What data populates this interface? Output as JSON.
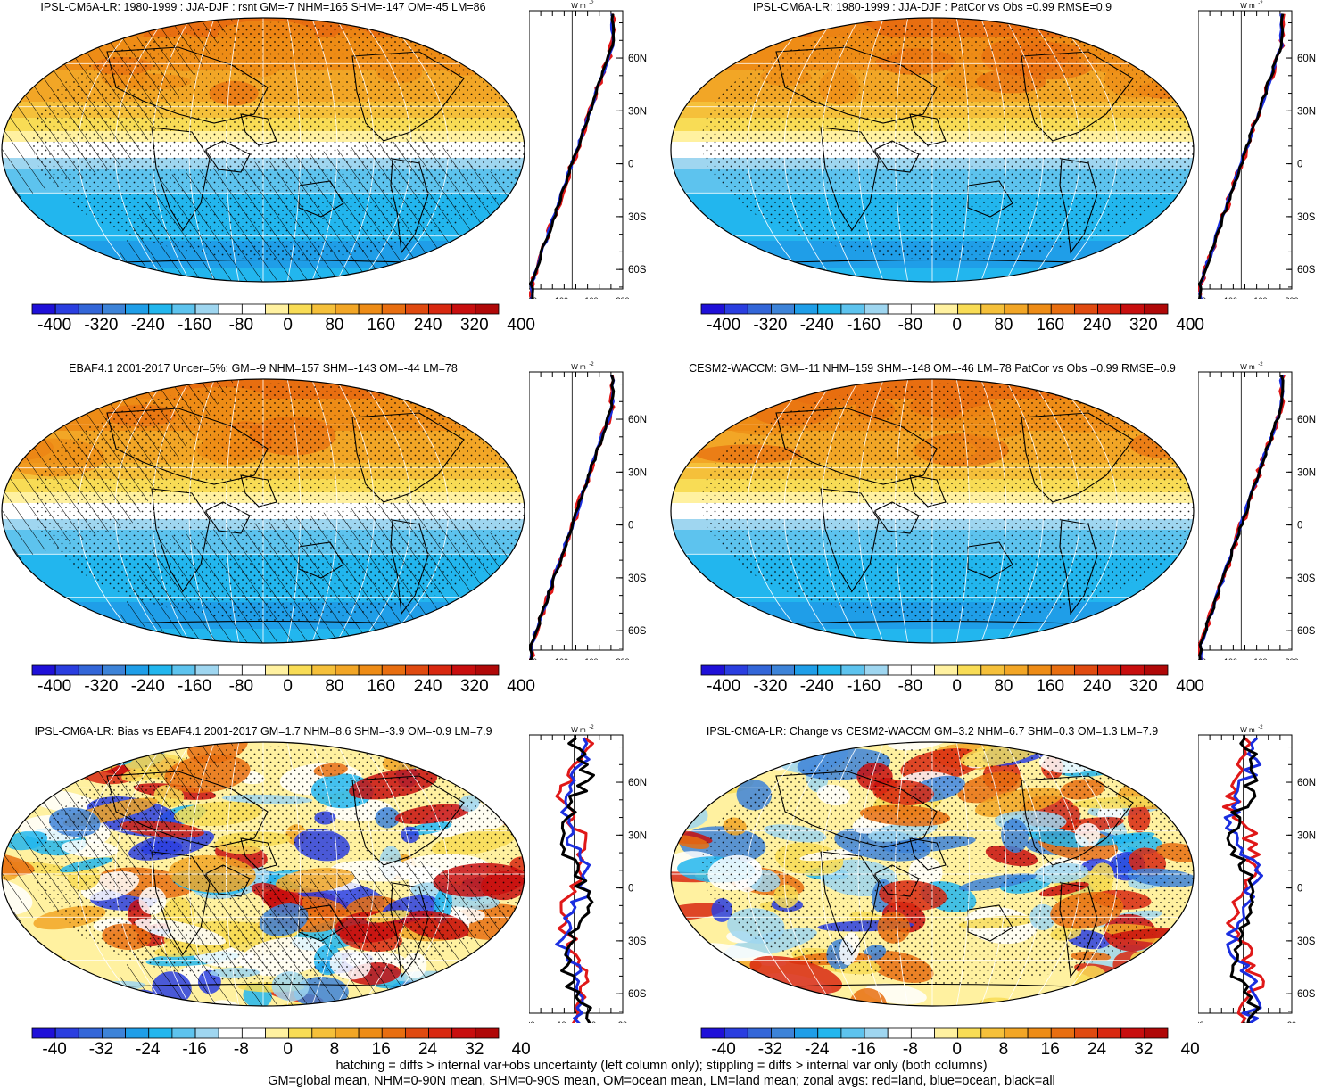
{
  "panels": [
    {
      "title": "IPSL-CM6A-LR: 1980-1999 : JJA-DJF : rsnt GM=-7 NHM=165 SHM=-147 OM=-45 LM=86",
      "kind": "clim",
      "hatching": true,
      "zonal_unit": "W m",
      "zonal_ticks": [
        "-300",
        "-100",
        "100",
        "300"
      ],
      "lat_labels": [
        "60N",
        "30N",
        "0",
        "30S",
        "60S"
      ],
      "colorbar_labels": [
        "-400",
        "-320",
        "-240",
        "-160",
        "-80",
        "0",
        "80",
        "160",
        "240",
        "320",
        "400"
      ]
    },
    {
      "title": "IPSL-CM6A-LR: 1980-1999 : JJA-DJF : PatCor vs Obs =0.99 RMSE=0.9",
      "kind": "clim",
      "hatching": false,
      "zonal_unit": "W m",
      "zonal_ticks": [
        "-300",
        "-100",
        "100",
        "300"
      ],
      "lat_labels": [
        "60N",
        "30N",
        "0",
        "30S",
        "60S"
      ],
      "colorbar_labels": [
        "-400",
        "-320",
        "-240",
        "-160",
        "-80",
        "0",
        "80",
        "160",
        "240",
        "320",
        "400"
      ]
    },
    {
      "title": "EBAF4.1 2001-2017 Uncer=5%: GM=-9 NHM=157 SHM=-143 OM=-44 LM=78",
      "kind": "clim",
      "hatching": true,
      "zonal_unit": "W m",
      "zonal_ticks": [
        "-300",
        "-100",
        "100",
        "300"
      ],
      "lat_labels": [
        "60N",
        "30N",
        "0",
        "30S",
        "60S"
      ],
      "colorbar_labels": [
        "-400",
        "-320",
        "-240",
        "-160",
        "-80",
        "0",
        "80",
        "160",
        "240",
        "320",
        "400"
      ]
    },
    {
      "title": "CESM2-WACCM: GM=-11 NHM=159 SHM=-148 OM=-46 LM=78 PatCor vs Obs =0.99 RMSE=0.9",
      "kind": "clim",
      "hatching": false,
      "zonal_unit": "W m",
      "zonal_ticks": [
        "-300",
        "-100",
        "100",
        "300"
      ],
      "lat_labels": [
        "60N",
        "30N",
        "0",
        "30S",
        "60S"
      ],
      "colorbar_labels": [
        "-400",
        "-320",
        "-240",
        "-160",
        "-80",
        "0",
        "80",
        "160",
        "240",
        "320",
        "400"
      ]
    },
    {
      "title": "IPSL-CM6A-LR: Bias vs EBAF4.1 2001-2017 GM=1.7 NHM=8.6 SHM=-3.9 OM=-0.9 LM=7.9",
      "kind": "diff",
      "hatching": true,
      "zonal_unit": "W m",
      "zonal_ticks": [
        "-30",
        "-10",
        "10",
        "30"
      ],
      "lat_labels": [
        "60N",
        "30N",
        "0",
        "30S",
        "60S"
      ],
      "colorbar_labels": [
        "-40",
        "-32",
        "-24",
        "-16",
        "-8",
        "0",
        "8",
        "16",
        "24",
        "32",
        "40"
      ]
    },
    {
      "title": "IPSL-CM6A-LR: Change vs CESM2-WACCM GM=3.2 NHM=6.7 SHM=0.3 OM=1.3 LM=7.9",
      "kind": "diff",
      "hatching": false,
      "zonal_unit": "W m",
      "zonal_ticks": [
        "-60",
        "-20",
        "20"
      ],
      "lat_labels": [
        "60N",
        "30N",
        "0",
        "30S",
        "60S"
      ],
      "colorbar_labels": [
        "-40",
        "-32",
        "-24",
        "-16",
        "-8",
        "0",
        "8",
        "16",
        "24",
        "32",
        "40"
      ]
    }
  ],
  "footer": {
    "line1": "hatching = diffs > internal var+obs uncertainty (left column only); stippling = diffs > internal var only (both columns)",
    "line2": "GM=global mean, NHM=0-90N mean, SHM=0-90S mean, OM=ocean mean, LM=land mean; zonal avgs: red=land, blue=ocean, black=all"
  },
  "colors": {
    "colorbar": [
      "#1f10d8",
      "#2a3ee0",
      "#3366d8",
      "#3d83d8",
      "#1f9ee8",
      "#22b6ee",
      "#5dc3ee",
      "#9fd6f0",
      "#ffffff",
      "#ffffff",
      "#fff1a0",
      "#f8dc55",
      "#f5c03a",
      "#f2a626",
      "#ee8c16",
      "#e86e10",
      "#e04a10",
      "#d82810",
      "#c80e0e",
      "#b00808"
    ],
    "land_line": "#e01818",
    "ocean_line": "#1a2ee0",
    "all_line": "#000000"
  }
}
